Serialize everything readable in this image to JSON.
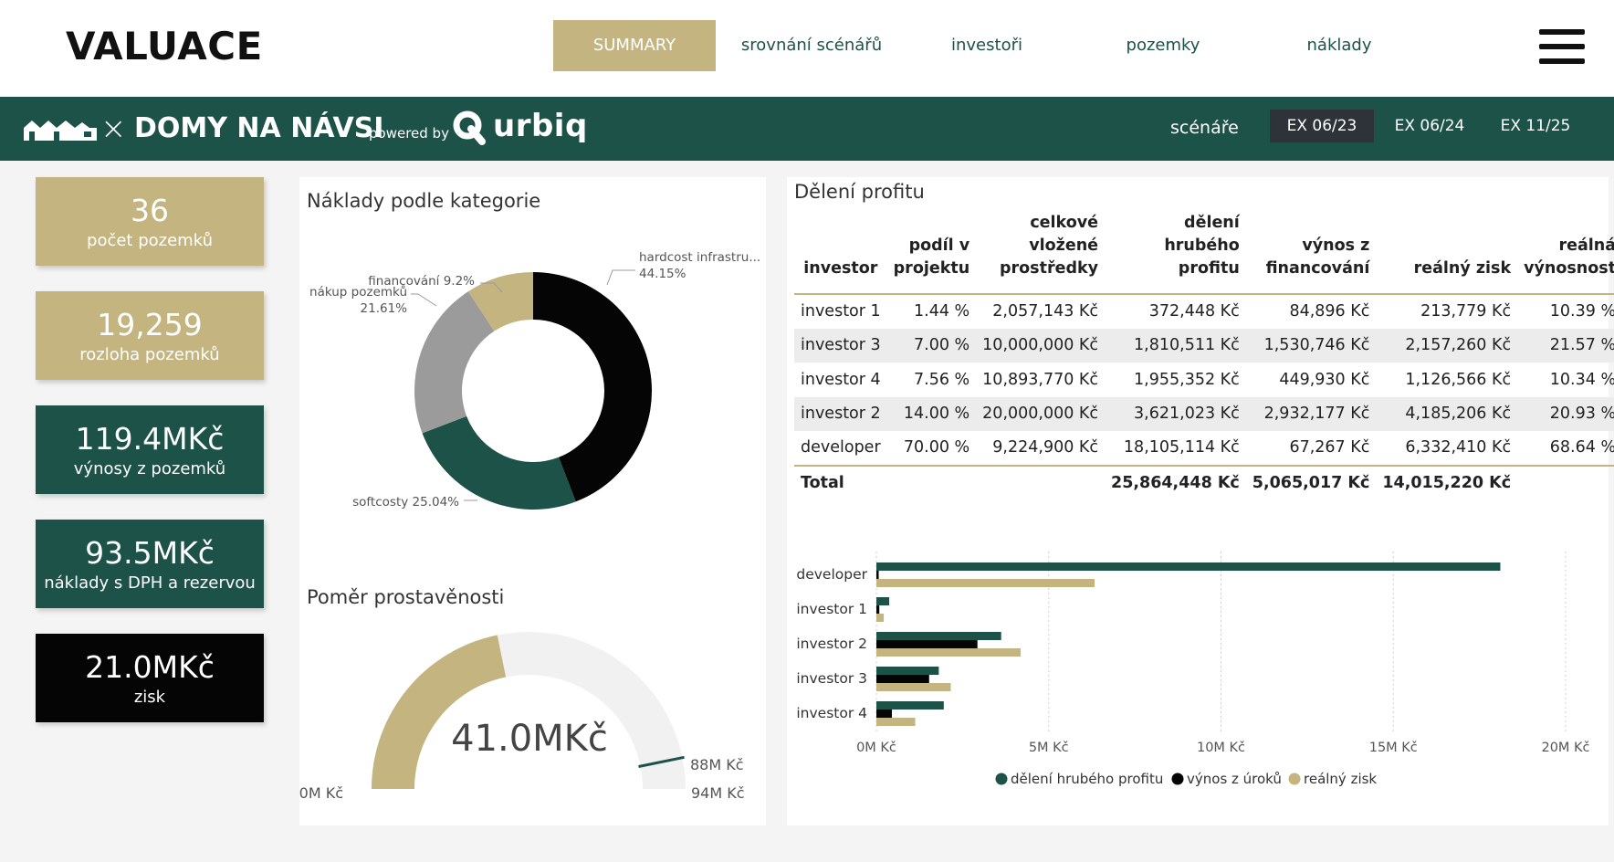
{
  "header": {
    "app_title": "VALUACE",
    "menu_icon": "hamburger-menu-icon",
    "nav": [
      {
        "label": "SUMMARY",
        "active": true
      },
      {
        "label": "srovnání scénářů",
        "active": false
      },
      {
        "label": "investoři",
        "active": false
      },
      {
        "label": "pozemky",
        "active": false
      },
      {
        "label": "náklady",
        "active": false
      }
    ]
  },
  "band": {
    "brand_icon": "houses-logo-icon",
    "separator": "×",
    "project_name": "DOMY NA NÁVSI",
    "powered_by": "powered by",
    "urbiq_name": "urbiq",
    "scenarios_label": "scénáře",
    "scenarios": [
      {
        "label": "EX 06/23",
        "active": true
      },
      {
        "label": "EX 06/24",
        "active": false
      },
      {
        "label": "EX 11/25",
        "active": false
      }
    ]
  },
  "kpis": [
    {
      "value": "36",
      "label": "počet pozemků",
      "style": "gold"
    },
    {
      "value": "19,259",
      "label": "rozloha pozemků",
      "style": "gold"
    },
    {
      "value": "119.4MKč",
      "label": "výnosy z pozemků",
      "style": "green"
    },
    {
      "value": "93.5MKč",
      "label": "náklady s DPH a rezervou",
      "style": "green"
    },
    {
      "value": "21.0MKč",
      "label": "zisk",
      "style": "black"
    }
  ],
  "colors": {
    "gold": "#c4b480",
    "green": "#1d5249",
    "black": "#050505",
    "grey": "#9b9b9b",
    "track": "#f1f1f1"
  },
  "costs_panel": {
    "title": "Náklady podle kategorie"
  },
  "gauge_panel": {
    "title": "Poměr prostavěnosti"
  },
  "profit_panel": {
    "title": "Dělení profitu",
    "columns": [
      [
        "investor"
      ],
      [
        "podíl v",
        "projektu"
      ],
      [
        "celkové vložené",
        "prostředky"
      ],
      [
        "dělení hrubého",
        "profitu"
      ],
      [
        "výnos z",
        "financování"
      ],
      [
        "reálný zisk"
      ],
      [
        "reálná",
        "výnosnost"
      ]
    ],
    "rows": [
      [
        "investor 1",
        "1.44 %",
        "2,057,143 Kč",
        "372,448 Kč",
        "84,896 Kč",
        "213,779 Kč",
        "10.39 %"
      ],
      [
        "investor 3",
        "7.00 %",
        "10,000,000 Kč",
        "1,810,511 Kč",
        "1,530,746 Kč",
        "2,157,260 Kč",
        "21.57 %"
      ],
      [
        "investor 4",
        "7.56 %",
        "10,893,770 Kč",
        "1,955,352 Kč",
        "449,930 Kč",
        "1,126,566 Kč",
        "10.34 %"
      ],
      [
        "investor 2",
        "14.00 %",
        "20,000,000 Kč",
        "3,621,023 Kč",
        "2,932,177 Kč",
        "4,185,206 Kč",
        "20.93 %"
      ],
      [
        "developer",
        "70.00 %",
        "9,224,900 Kč",
        "18,105,114 Kč",
        "67,267 Kč",
        "6,332,410 Kč",
        "68.64 %"
      ]
    ],
    "total": [
      "Total",
      "",
      "",
      "25,864,448 Kč",
      "5,065,017 Kč",
      "14,015,220 Kč",
      ""
    ]
  },
  "chart_data": [
    {
      "type": "pie",
      "subtype": "donut",
      "title": "Náklady podle kategorie",
      "categories": [
        "hardcost infrastru...",
        "softcosty",
        "nákup pozemků",
        "financování"
      ],
      "values": [
        44.15,
        25.04,
        21.61,
        9.2
      ],
      "labels": [
        "44.15%",
        "25.04%",
        "21.61%",
        "9.2%"
      ],
      "colors": [
        "#050505",
        "#1d5249",
        "#9b9b9b",
        "#c4b480"
      ]
    },
    {
      "type": "gauge",
      "title": "Poměr prostavěnosti",
      "value": 41.0,
      "value_label": "41.0MKč",
      "min": 0,
      "max": 94,
      "target": 88,
      "min_label": "0M Kč",
      "max_label": "94M Kč",
      "target_label": "88M Kč"
    },
    {
      "type": "bar",
      "orientation": "horizontal",
      "categories": [
        "developer",
        "investor 1",
        "investor 2",
        "investor 3",
        "investor 4"
      ],
      "series": [
        {
          "name": "dělení hrubého profitu",
          "color": "#1d5249",
          "values": [
            18105114,
            372448,
            3621023,
            1810511,
            1955352
          ]
        },
        {
          "name": "výnos z úroků",
          "color": "#050505",
          "values": [
            67267,
            84896,
            2932177,
            1530746,
            449930
          ]
        },
        {
          "name": "reálný zisk",
          "color": "#c4b480",
          "values": [
            6332410,
            213779,
            4185206,
            2157260,
            1126566
          ]
        }
      ],
      "xlim": [
        0,
        20000000
      ],
      "xticks": [
        0,
        5000000,
        10000000,
        15000000,
        20000000
      ],
      "xtick_labels": [
        "0M Kč",
        "5M Kč",
        "10M Kč",
        "15M Kč",
        "20M Kč"
      ],
      "legend": "bottom",
      "grid": true
    }
  ]
}
